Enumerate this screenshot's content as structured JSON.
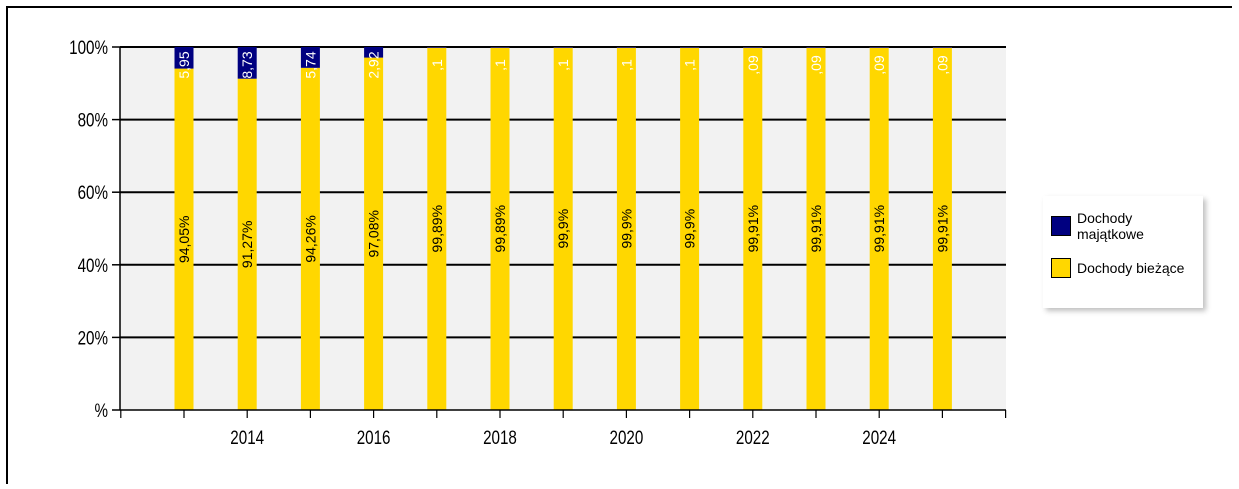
{
  "chart_data": {
    "type": "bar",
    "stacked": true,
    "percent": true,
    "x": [
      2013,
      2014,
      2015,
      2016,
      2017,
      2018,
      2019,
      2020,
      2021,
      2022,
      2023,
      2024,
      2025
    ],
    "x_ticks": [
      "2014",
      "2016",
      "2018",
      "2020",
      "2022",
      "2024"
    ],
    "y_ticks": [
      "%",
      "20%",
      "40%",
      "60%",
      "80%",
      "100%"
    ],
    "ylim": [
      0,
      100
    ],
    "series": [
      {
        "name": "Dochody majątkowe",
        "color": "#000080",
        "values": [
          5.95,
          8.73,
          5.74,
          2.92,
          0.11,
          0.11,
          0.1,
          0.1,
          0.1,
          0.09,
          0.09,
          0.09,
          0.09
        ],
        "labels": [
          "5,95",
          "8,73",
          "5,74",
          "2,92",
          ",1",
          ",1",
          ",1",
          ",1",
          ",1",
          ",09",
          ",09",
          ",09",
          ",09"
        ]
      },
      {
        "name": "Dochody bieżące",
        "color": "#FFD700",
        "values": [
          94.05,
          91.27,
          94.26,
          97.08,
          99.89,
          99.89,
          99.9,
          99.9,
          99.9,
          99.91,
          99.91,
          99.91,
          99.91
        ],
        "labels": [
          "94,05%",
          "91,27%",
          "94,26%",
          "97,08%",
          "99,89%",
          "99,89%",
          "99,9%",
          "99,9%",
          "99,9%",
          "99,91%",
          "99,91%",
          "99,91%",
          "99,91%"
        ]
      }
    ],
    "legend_position": "right",
    "grid": true
  }
}
